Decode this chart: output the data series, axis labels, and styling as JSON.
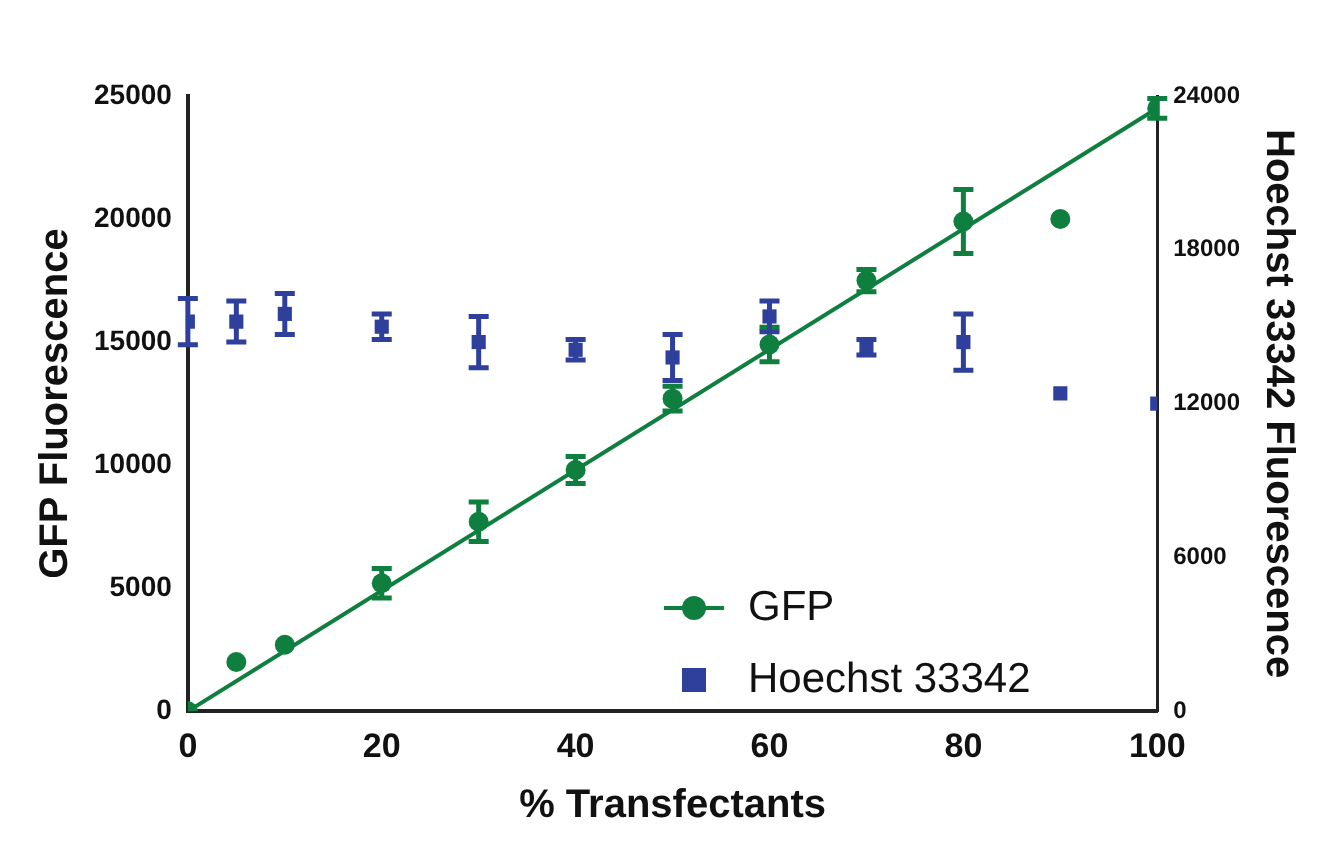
{
  "chart_data": {
    "type": "scatter",
    "xlabel": "% Transfectants",
    "ylabel": "GFP Fluorescence",
    "y2label": "Hoechst 33342 Fluorescence",
    "xlim": [
      0,
      100
    ],
    "xticks": [
      0,
      20,
      40,
      60,
      80,
      100
    ],
    "ylim": [
      0,
      25000
    ],
    "yticks": [
      0,
      5000,
      10000,
      15000,
      20000,
      25000
    ],
    "y2lim": [
      0,
      24000
    ],
    "y2ticks": [
      0,
      6000,
      12000,
      18000,
      24000
    ],
    "grid": false,
    "legend": "bottom right",
    "series": [
      {
        "name": "GFP",
        "marker": "circle",
        "color": "#0e7f3e",
        "x": [
          0,
          5,
          10,
          20,
          30,
          40,
          50,
          60,
          70,
          80,
          90,
          100
        ],
        "values": [
          0,
          2000,
          2700,
          5200,
          7700,
          9800,
          12700,
          14900,
          17500,
          19900,
          20000,
          24500
        ],
        "errors": [
          null,
          null,
          null,
          600,
          800,
          550,
          500,
          700,
          450,
          1300,
          null,
          400
        ]
      },
      {
        "name": "Hoechst 33342",
        "marker": "square",
        "axis": "y2",
        "color": "#2e3f9c",
        "x": [
          0,
          5,
          10,
          20,
          30,
          40,
          50,
          60,
          70,
          80,
          90,
          100
        ],
        "values": [
          15200,
          15200,
          15500,
          15000,
          14400,
          14100,
          13800,
          15400,
          14200,
          14400,
          12400,
          12000
        ],
        "errors": [
          900,
          800,
          800,
          500,
          1000,
          400,
          900,
          600,
          300,
          1100,
          null,
          null
        ]
      },
      {
        "type": "line",
        "color": "#0e7f3e",
        "line_style": "solid",
        "x": [
          0,
          100
        ],
        "values": [
          0,
          24500
        ]
      }
    ]
  }
}
